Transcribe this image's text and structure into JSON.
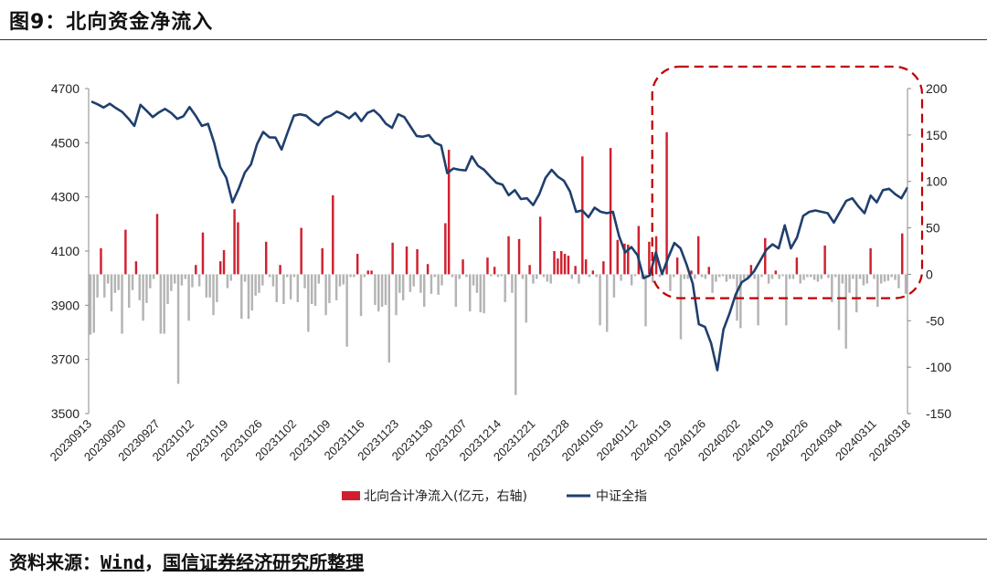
{
  "header": {
    "title": "图9：北向资金净流入"
  },
  "footer": {
    "prefix": "资料来源：",
    "wind": "Wind",
    "sep": "，",
    "org": "国信证券经济研究所整理"
  },
  "chart_data": {
    "type": "bar+line",
    "title": "",
    "left_axis": {
      "ylim": [
        3500,
        4700
      ],
      "ticks": [
        "3500",
        "3700",
        "3900",
        "4100",
        "4300",
        "4500",
        "4700"
      ]
    },
    "right_axis": {
      "ylim": [
        -150,
        200
      ],
      "ticks": [
        "-150",
        "-100",
        "-50",
        "0",
        "50",
        "100",
        "150",
        "200"
      ]
    },
    "x_tick_labels": [
      "20230913",
      "20230920",
      "20230927",
      "20231012",
      "20231019",
      "20231026",
      "20231102",
      "20231109",
      "20231116",
      "20231123",
      "20231130",
      "20231207",
      "20231214",
      "20231221",
      "20231228",
      "20240105",
      "20240112",
      "20240119",
      "20240126",
      "20240202",
      "20240219",
      "20240226",
      "20240304",
      "20240311",
      "20240318"
    ],
    "legend": {
      "position": "bottom",
      "items": [
        "北向合计净流入(亿元，右轴)",
        "中证全指"
      ]
    },
    "colors": {
      "inflow_positive": "#d0202f",
      "inflow_negative": "#b4b4b4",
      "index_line": "#1f3f6e",
      "highlight_box": "#c00000"
    },
    "annotations": [
      {
        "type": "dashed-rounded-box",
        "from": "20240116",
        "to": "20240318",
        "color": "#c00000"
      }
    ],
    "series": [
      {
        "name": "北向合计净流入(亿元，右轴)",
        "axis": "right",
        "kind": "bar",
        "values": [
          -65,
          -63,
          -25,
          28,
          -25,
          -10,
          -40,
          -20,
          -17,
          -64,
          48,
          -36,
          -17,
          14,
          -28,
          -50,
          -31,
          -15,
          -5,
          65,
          -64,
          -64,
          -32,
          -18,
          -10,
          -118,
          -12,
          -5,
          -50,
          -14,
          10,
          -13,
          45,
          -25,
          -25,
          -44,
          -30,
          14,
          26,
          -15,
          -7,
          70,
          56,
          -48,
          -8,
          -48,
          -39,
          -23,
          -20,
          -12,
          35,
          -3,
          -13,
          -30,
          10,
          -32,
          -3,
          -27,
          -3,
          -30,
          50,
          -15,
          -62,
          -32,
          -34,
          -10,
          28,
          -44,
          -31,
          85,
          -28,
          -13,
          -11,
          -78,
          -3,
          -3,
          22,
          -45,
          -3,
          4,
          4,
          -33,
          -40,
          -35,
          -33,
          -95,
          34,
          -44,
          -20,
          -28,
          30,
          -19,
          -13,
          27,
          -20,
          -35,
          11,
          -21,
          -3,
          -22,
          -12,
          55,
          134,
          -3,
          -35,
          -5,
          16,
          -3,
          -40,
          -12,
          -20,
          -41,
          -42,
          18,
          -2,
          8,
          -3,
          -2,
          -30,
          41,
          -20,
          -130,
          38,
          -5,
          -52,
          10,
          -10,
          -5,
          62,
          -3,
          -8,
          -10,
          25,
          17,
          25,
          22,
          20,
          -5,
          9,
          -10,
          127,
          16,
          -3,
          4,
          -3,
          -55,
          14,
          -62,
          136,
          -25,
          37,
          -7,
          33,
          32,
          -12,
          -2,
          52,
          -5,
          -56,
          35,
          -9,
          41,
          -3,
          -1,
          153,
          -18,
          -3,
          18,
          -70,
          -5,
          -5,
          4,
          -5,
          41,
          -3,
          -5,
          8,
          -20,
          -8,
          -3,
          -2,
          -8,
          -5,
          -5,
          -50,
          -58,
          -5,
          -3,
          10,
          -5,
          -55,
          -3,
          39,
          -10,
          -5,
          4,
          -5,
          -2,
          -55,
          -5,
          -5,
          18,
          -10,
          -6,
          -3,
          -3,
          -6,
          -8,
          -5,
          31,
          -4,
          -30,
          -3,
          -60,
          -10,
          -80,
          -20,
          -5,
          -41,
          -5,
          -12,
          -10,
          28,
          -5,
          -35,
          -10,
          -8,
          -7,
          -3,
          -6,
          -15,
          44,
          -21
        ]
      },
      {
        "name": "中证全指",
        "axis": "left",
        "kind": "line",
        "values": [
          4652,
          4642,
          4630,
          4644,
          4628,
          4614,
          4590,
          4562,
          4640,
          4618,
          4595,
          4612,
          4625,
          4610,
          4588,
          4598,
          4632,
          4600,
          4562,
          4570,
          4500,
          4410,
          4370,
          4280,
          4330,
          4390,
          4420,
          4495,
          4540,
          4520,
          4519,
          4475,
          4540,
          4600,
          4605,
          4600,
          4580,
          4565,
          4590,
          4600,
          4615,
          4605,
          4590,
          4610,
          4580,
          4610,
          4620,
          4600,
          4570,
          4555,
          4605,
          4595,
          4560,
          4525,
          4522,
          4528,
          4500,
          4490,
          4388,
          4405,
          4400,
          4398,
          4450,
          4415,
          4400,
          4375,
          4352,
          4345,
          4306,
          4325,
          4292,
          4295,
          4270,
          4310,
          4370,
          4400,
          4375,
          4360,
          4320,
          4245,
          4250,
          4225,
          4260,
          4245,
          4240,
          4245,
          4155,
          4095,
          4115,
          4085,
          4000,
          4010,
          4095,
          4015,
          4075,
          4130,
          4110,
          4050,
          3980,
          3830,
          3820,
          3760,
          3660,
          3810,
          3870,
          3940,
          3985,
          4000,
          4025,
          4065,
          4105,
          4125,
          4110,
          4195,
          4110,
          4150,
          4230,
          4245,
          4250,
          4245,
          4240,
          4205,
          4245,
          4285,
          4295,
          4265,
          4240,
          4305,
          4280,
          4325,
          4330,
          4310,
          4295,
          4335
        ]
      }
    ]
  }
}
